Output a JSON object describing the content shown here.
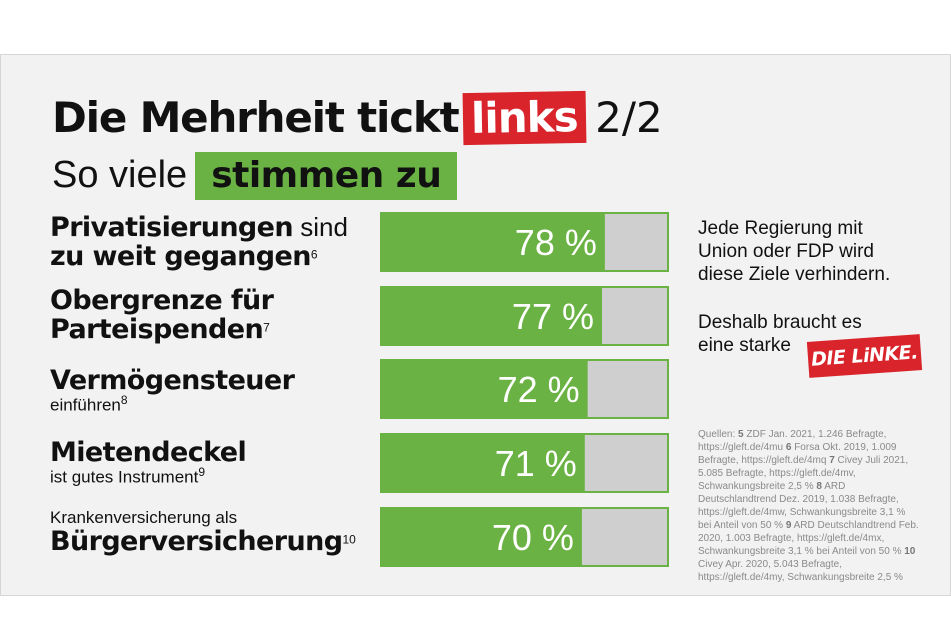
{
  "title": {
    "main": "Die Mehrheit tickt",
    "highlight": "links",
    "suffix": "2/2"
  },
  "subtitle": {
    "main": "So viele",
    "highlight": "stimmen zu"
  },
  "rows": [
    {
      "line1_bold": "Privatisierungen",
      "line1_rest": " sind",
      "line2_bold": "zu weit gegangen",
      "note": "6"
    },
    {
      "line1_bold": "Obergrenze für",
      "line2_bold": "Parteispenden",
      "note": "7"
    },
    {
      "line1_bold": "Vermögensteuer",
      "line2_small": "einführen",
      "note": "8"
    },
    {
      "line1_bold": "Mietendeckel",
      "line2_small": "ist gutes Instrument",
      "note": "9"
    },
    {
      "line1_small": "Krankenversicherung als",
      "line2_bold": "Bürgerversicherung",
      "note": "10"
    }
  ],
  "chart_data": {
    "type": "bar",
    "orientation": "horizontal",
    "categories": [
      "Privatisierungen sind zu weit gegangen",
      "Obergrenze für Parteispenden",
      "Vermögensteuer einführen",
      "Mietendeckel ist gutes Instrument",
      "Krankenversicherung als Bürgerversicherung"
    ],
    "values": [
      78,
      77,
      72,
      71,
      70
    ],
    "labels": [
      "78 %",
      "77 %",
      "72 %",
      "71 %",
      "70 %"
    ],
    "xlim": [
      0,
      100
    ],
    "colors": {
      "bar": "#6ab243",
      "track": "#cfcfcf",
      "border": "#6ab243",
      "value_text": "#ffffff"
    }
  },
  "side": {
    "para1": [
      "Jede Regierung mit",
      "Union oder FDP wird",
      "diese Ziele verhindern."
    ],
    "para2": [
      "Deshalb braucht es",
      "eine starke"
    ],
    "logo": "DIE LiNKE."
  },
  "sources": {
    "label": "Quellen:",
    "entries": [
      {
        "num": "5",
        "text": "ZDF Jan. 2021, 1.246 Befragte, https://gleft.de/4mu"
      },
      {
        "num": "6",
        "text": "Forsa Okt. 2019, 1.009 Befragte, https://gleft.de/4mq"
      },
      {
        "num": "7",
        "text": "Civey Juli 2021, 5.085 Befragte, https://gleft.de/4mv, Schwankungsbreite 2,5 %"
      },
      {
        "num": "8",
        "text": "ARD Deutschlandtrend Dez. 2019, 1.038 Befragte, https://gleft.de/4mw, Schwankungsbreite 3,1 % bei Anteil von 50 %"
      },
      {
        "num": "9",
        "text": "ARD Deutschlandtrend Feb. 2020, 1.003 Befragte, https://gleft.de/4mx, Schwankungsbreite 3,1 % bei Anteil von 50 %"
      },
      {
        "num": "10",
        "text": "Civey Apr. 2020, 5.043 Befragte, https://gleft.de/4my, Schwankungsbreite 2,5 %"
      }
    ]
  },
  "colors": {
    "red": "#d9242b",
    "green": "#6ab243",
    "background": "#f2f2f2"
  }
}
